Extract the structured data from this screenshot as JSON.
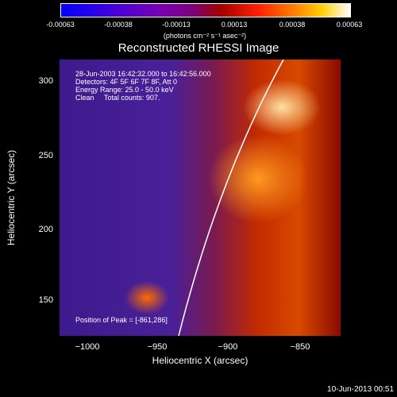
{
  "colorbar": {
    "ticks": [
      "-0.00063",
      "-0.00038",
      "-0.00013",
      "0.00013",
      "0.00038",
      "0.00063"
    ],
    "units": "(photons cm⁻² s⁻¹ asec⁻²)"
  },
  "title": "Reconstructed RHESSI Image",
  "info": {
    "time": "28-Jun-2003 16:42:32.000 to 16:42:56.000",
    "detectors": "Detectors: 4F 5F 6F 7F 8F, Att 0",
    "energy": "Energy Range: 25.0 - 50.0 keV",
    "clean": "Clean     Total counts: 907."
  },
  "peak": "Position of Peak = [-861,286]",
  "axes": {
    "ylabel": "Heliocentric Y (arcsec)",
    "xlabel": "Heliocentric X (arcsec)",
    "yticks": [
      "300",
      "250",
      "200",
      "150"
    ],
    "xticks": [
      "−1000",
      "−950",
      "−900",
      "−850"
    ]
  },
  "footer": "10-Jun-2013 00:51"
}
